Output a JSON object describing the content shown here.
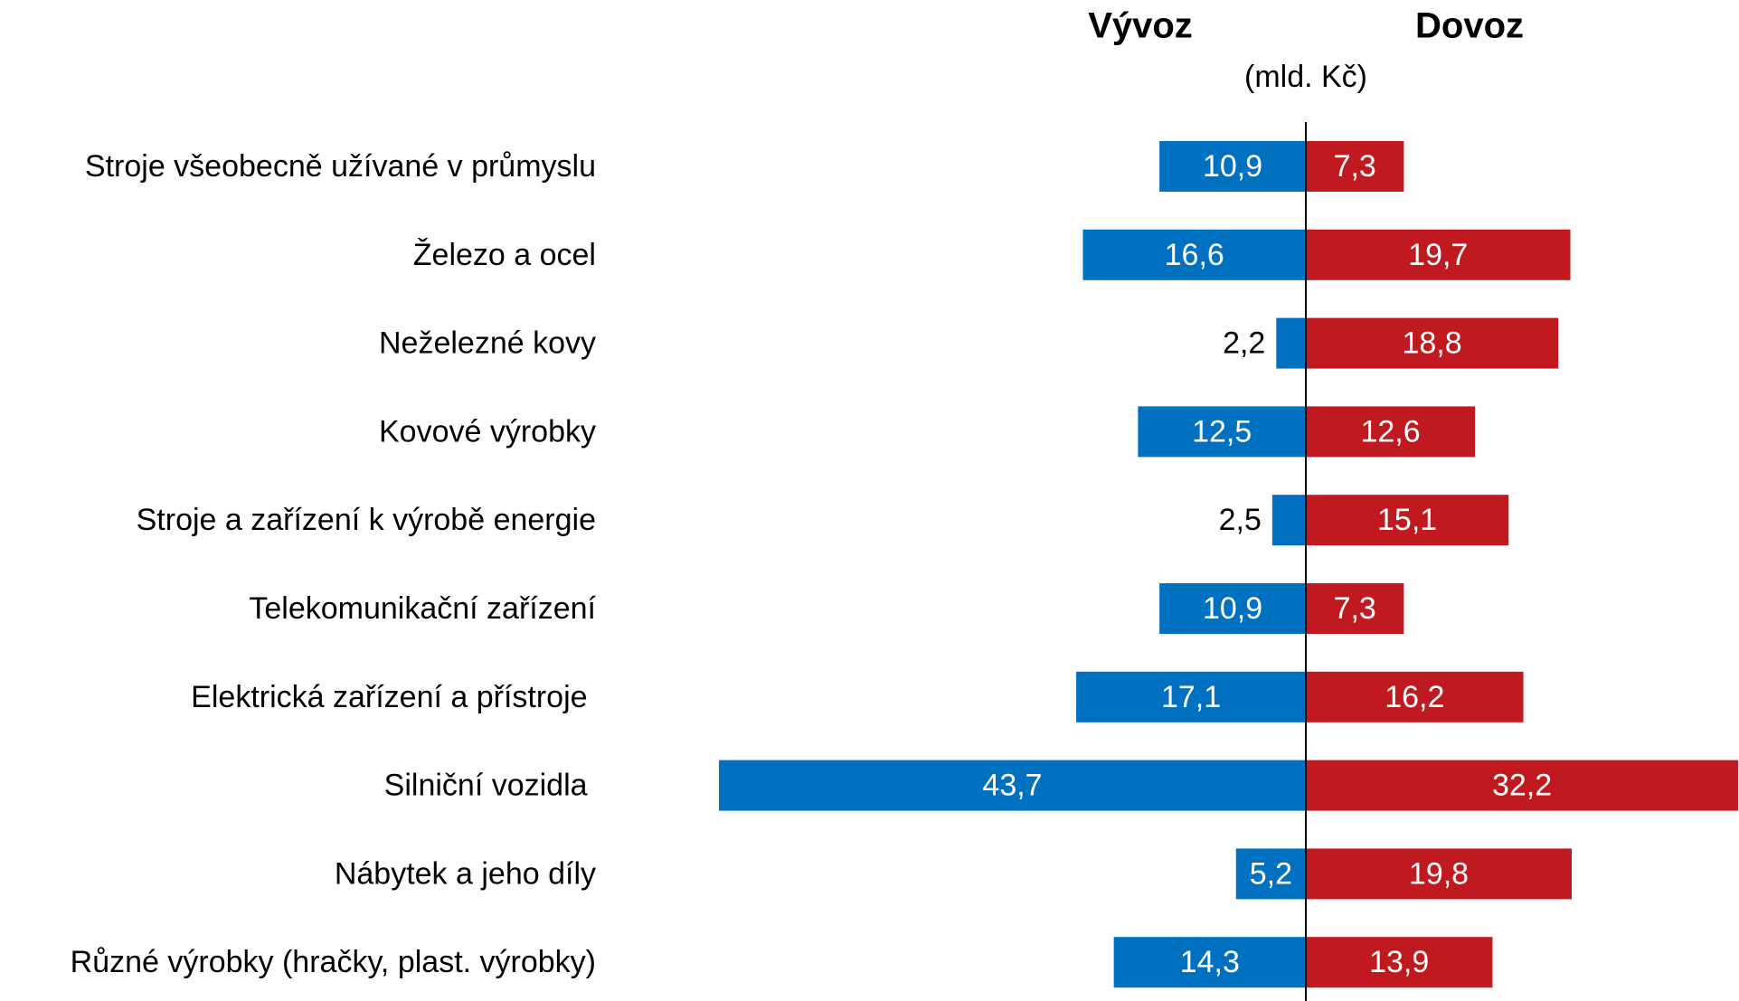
{
  "chart_data": {
    "type": "butterfly-bar",
    "subtitle": "(mld. Kč)",
    "categories": [
      "Stroje všeobecně užívané v průmyslu",
      "Železo a ocel",
      "Neželezné kovy",
      "Kovové výrobky",
      "Stroje a zařízení k výrobě energie",
      "Telekomunikační zařízení",
      "Elektrická zařízení a přístroje ",
      "Silniční vozidla ",
      "Nábytek a jeho díly",
      "Různé výrobky (hračky, plast. výrobky)"
    ],
    "series": [
      {
        "name": "Vývoz",
        "color": "#0070c0",
        "side": "left",
        "values": [
          10.9,
          16.6,
          2.2,
          12.5,
          2.5,
          10.9,
          17.1,
          43.7,
          5.2,
          14.3
        ],
        "value_labels": [
          "10,9",
          "16,6",
          "2,2",
          "12,5",
          "2,5",
          "10,9",
          "17,1",
          "43,7",
          "5,2",
          "14,3"
        ]
      },
      {
        "name": "Dovoz",
        "color": "#c0191f",
        "side": "right",
        "values": [
          7.3,
          19.7,
          18.8,
          12.6,
          15.1,
          7.3,
          16.2,
          32.2,
          19.8,
          13.9
        ],
        "value_labels": [
          "7,3",
          "19,7",
          "18,8",
          "12,6",
          "15,1",
          "7,3",
          "16,2",
          "32,2",
          "19,8",
          "13,9"
        ]
      }
    ]
  }
}
